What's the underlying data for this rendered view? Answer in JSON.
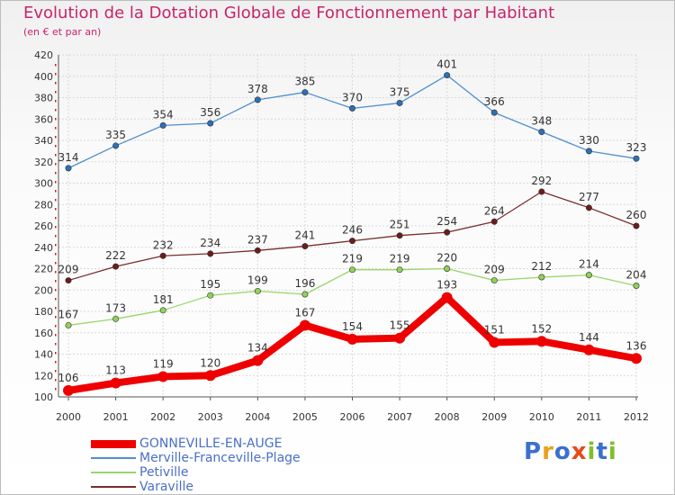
{
  "title": "Evolution de la Dotation Globale de Fonctionnement par Habitant",
  "subtitle": "(en € et par an)",
  "logo": {
    "letters": [
      {
        "ch": "P",
        "color": "#3b6fcf"
      },
      {
        "ch": "r",
        "color": "#e8a21a"
      },
      {
        "ch": "o",
        "color": "#3b6fcf"
      },
      {
        "ch": "x",
        "color": "#e8491a"
      },
      {
        "ch": "i",
        "color": "#7fbf2a"
      },
      {
        "ch": "t",
        "color": "#3b6fcf"
      },
      {
        "ch": "i",
        "color": "#7fbf2a"
      }
    ]
  },
  "chart_data": {
    "type": "line",
    "title": "Evolution de la Dotation Globale de Fonctionnement par Habitant",
    "subtitle": "(en € et par an)",
    "x": [
      "2000",
      "2001",
      "2002",
      "2003",
      "2004",
      "2005",
      "2006",
      "2007",
      "2008",
      "2009",
      "2010",
      "2011",
      "2012"
    ],
    "ylim": [
      100,
      420
    ],
    "yticks": [
      100,
      120,
      140,
      160,
      180,
      200,
      220,
      240,
      260,
      280,
      300,
      320,
      340,
      360,
      380,
      400,
      420
    ],
    "grid": true,
    "legend_position": "bottom-left",
    "series": [
      {
        "name": "GONNEVILLE-EN-AUGE",
        "color": "#ee0000",
        "emphasis": true,
        "values": [
          106,
          113,
          119,
          120,
          134,
          167,
          154,
          155,
          193,
          151,
          152,
          144,
          136
        ]
      },
      {
        "name": "Merville-Franceville-Plage",
        "color": "#4f8fd0",
        "point_color": "#2e6fb5",
        "values": [
          314,
          335,
          354,
          356,
          378,
          385,
          370,
          375,
          401,
          366,
          348,
          330,
          323
        ]
      },
      {
        "name": "Petiville",
        "color": "#99d66b",
        "point_color": "#8fd15a",
        "values": [
          167,
          173,
          181,
          195,
          199,
          196,
          219,
          219,
          220,
          209,
          212,
          214,
          204
        ]
      },
      {
        "name": "Varaville",
        "color": "#7a2d2d",
        "point_color": "#6b1c1c",
        "values": [
          209,
          222,
          232,
          234,
          237,
          241,
          246,
          251,
          254,
          264,
          292,
          277,
          260
        ]
      }
    ]
  }
}
